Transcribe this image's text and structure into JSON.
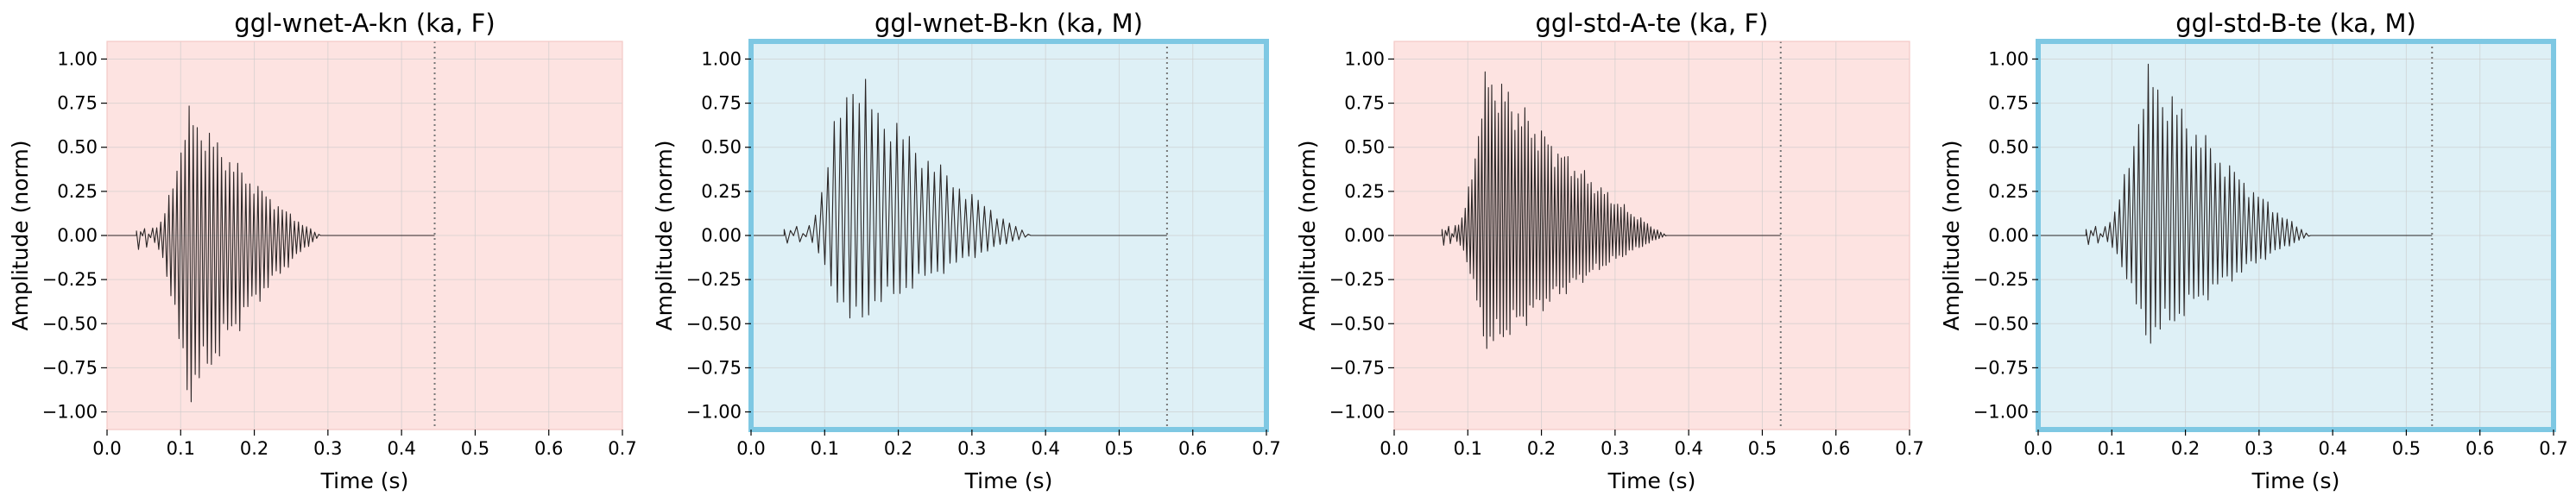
{
  "chart_data": [
    {
      "type": "line",
      "title": "ggl-wnet-A-kn (ka, F)",
      "xlabel": "Time (s)",
      "ylabel": "Amplitude (norm)",
      "xlim": [
        0.0,
        0.7
      ],
      "ylim": [
        -1.1,
        1.1
      ],
      "xticks": [
        "0.0",
        "0.1",
        "0.2",
        "0.3",
        "0.4",
        "0.5",
        "0.6",
        "0.7"
      ],
      "yticks": [
        "-1.00",
        "-0.75",
        "-0.50",
        "-0.25",
        "0.00",
        "0.25",
        "0.50",
        "0.75",
        "1.00"
      ],
      "grid": true,
      "background": "#fde3e1",
      "frame_color": "",
      "marker_line_x": 0.445,
      "waveform": {
        "start": 0.04,
        "onset_end": 0.065,
        "peak_time": 0.115,
        "decay_end": 0.29,
        "end": 0.445,
        "peak_pos": 0.75,
        "peak_neg": -1.0,
        "period": 0.0055
      }
    },
    {
      "type": "line",
      "title": "ggl-wnet-B-kn (ka, M)",
      "xlabel": "Time (s)",
      "ylabel": "Amplitude (norm)",
      "xlim": [
        0.0,
        0.7
      ],
      "ylim": [
        -1.1,
        1.1
      ],
      "xticks": [
        "0.0",
        "0.1",
        "0.2",
        "0.3",
        "0.4",
        "0.5",
        "0.6",
        "0.7"
      ],
      "yticks": [
        "-1.00",
        "-0.75",
        "-0.50",
        "-0.25",
        "0.00",
        "0.25",
        "0.50",
        "0.75",
        "1.00"
      ],
      "grid": true,
      "background": "#def0f6",
      "frame_color": "#7ec8e3",
      "marker_line_x": 0.565,
      "waveform": {
        "start": 0.045,
        "onset_end": 0.075,
        "peak_time": 0.135,
        "decay_end": 0.38,
        "end": 0.565,
        "peak_pos": 1.0,
        "peak_neg": -0.55,
        "period": 0.0085
      }
    },
    {
      "type": "line",
      "title": "ggl-std-A-te (ka, F)",
      "xlabel": "Time (s)",
      "ylabel": "Amplitude (norm)",
      "xlim": [
        0.0,
        0.7
      ],
      "ylim": [
        -1.1,
        1.1
      ],
      "xticks": [
        "0.0",
        "0.1",
        "0.2",
        "0.3",
        "0.4",
        "0.5",
        "0.6",
        "0.7"
      ],
      "yticks": [
        "-1.00",
        "-0.75",
        "-0.50",
        "-0.25",
        "0.00",
        "0.25",
        "0.50",
        "0.75",
        "1.00"
      ],
      "grid": true,
      "background": "#fde3e1",
      "frame_color": "",
      "marker_line_x": 0.525,
      "waveform": {
        "start": 0.065,
        "onset_end": 0.085,
        "peak_time": 0.13,
        "decay_end": 0.37,
        "end": 0.525,
        "peak_pos": 1.0,
        "peak_neg": -0.7,
        "period": 0.0045
      }
    },
    {
      "type": "line",
      "title": "ggl-std-B-te (ka, M)",
      "xlabel": "Time (s)",
      "ylabel": "Amplitude (norm)",
      "xlim": [
        0.0,
        0.7
      ],
      "ylim": [
        -1.1,
        1.1
      ],
      "xticks": [
        "0.0",
        "0.1",
        "0.2",
        "0.3",
        "0.4",
        "0.5",
        "0.6",
        "0.7"
      ],
      "yticks": [
        "-1.00",
        "-0.75",
        "-0.50",
        "-0.25",
        "0.00",
        "0.25",
        "0.50",
        "0.75",
        "1.00"
      ],
      "grid": true,
      "background": "#def0f6",
      "frame_color": "#7ec8e3",
      "marker_line_x": 0.535,
      "waveform": {
        "start": 0.065,
        "onset_end": 0.09,
        "peak_time": 0.155,
        "decay_end": 0.37,
        "end": 0.535,
        "peak_pos": 1.0,
        "peak_neg": -0.65,
        "period": 0.0065
      }
    }
  ]
}
